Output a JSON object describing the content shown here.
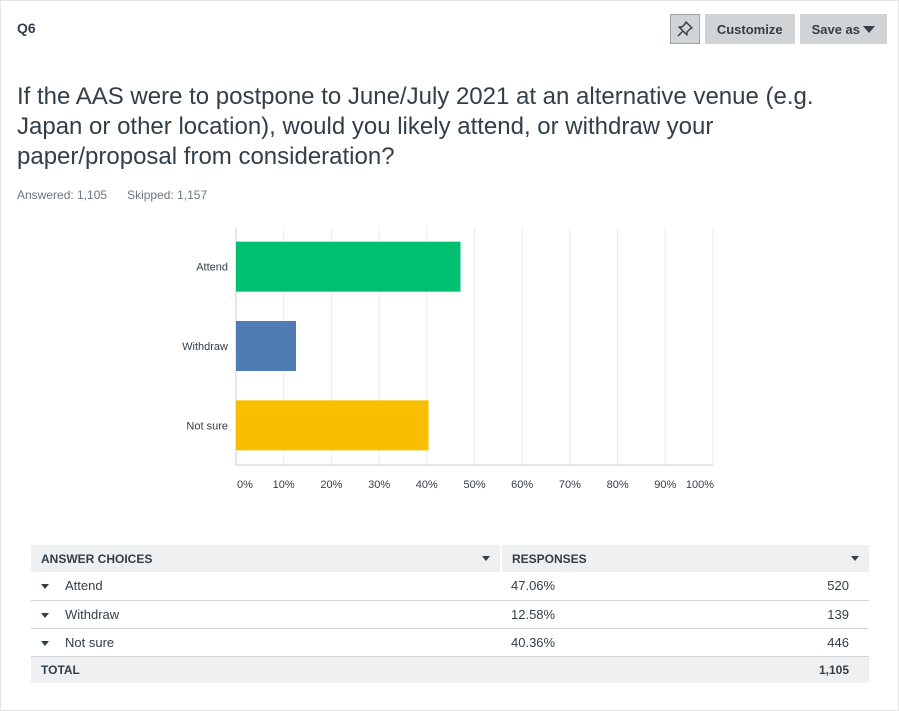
{
  "question": {
    "number": "Q6",
    "text": "If the AAS were to postpone to June/July 2021 at an alternative venue (e.g. Japan or other location), would you likely attend, or withdraw your paper/proposal from consideration?",
    "answered_label": "Answered: 1,105",
    "skipped_label": "Skipped: 1,157"
  },
  "toolbar": {
    "pin_icon": "pin-icon",
    "customize_label": "Customize",
    "save_as_label": "Save as"
  },
  "chart_data": {
    "type": "bar",
    "orientation": "horizontal",
    "categories": [
      "Attend",
      "Withdraw",
      "Not sure"
    ],
    "values": [
      47.06,
      12.58,
      40.36
    ],
    "colors": [
      "#00bf6f",
      "#507cb6",
      "#f9be00"
    ],
    "xlim": [
      0,
      100
    ],
    "xticks": [
      "0%",
      "10%",
      "20%",
      "30%",
      "40%",
      "50%",
      "60%",
      "70%",
      "80%",
      "90%",
      "100%"
    ],
    "grid": true
  },
  "table": {
    "headers": [
      "ANSWER CHOICES",
      "RESPONSES"
    ],
    "rows": [
      {
        "choice": "Attend",
        "percent": "47.06%",
        "count": "520"
      },
      {
        "choice": "Withdraw",
        "percent": "12.58%",
        "count": "139"
      },
      {
        "choice": "Not sure",
        "percent": "40.36%",
        "count": "446"
      }
    ],
    "total_label": "TOTAL",
    "total_value": "1,105"
  }
}
